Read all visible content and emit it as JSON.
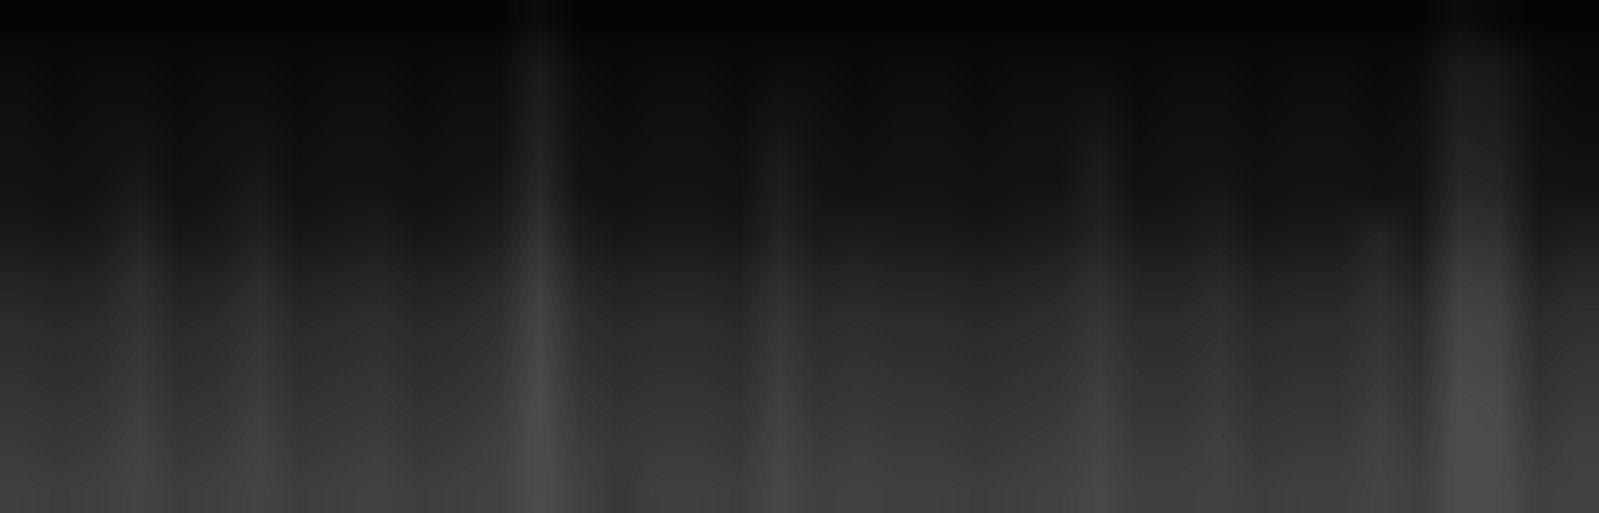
{
  "chart_data": {
    "type": "heatmap",
    "color": "gray",
    "tick_labels": false,
    "cell_range": [
      0,
      1
    ],
    "cells": [
      [
        0.02,
        0.02,
        0.02,
        0.02,
        0.02,
        0.02,
        0.02,
        0.02,
        0.02,
        0.02,
        0.02,
        0.02,
        0.02,
        0.05,
        0.02,
        0.02,
        0.02,
        0.02,
        0.02,
        0.02,
        0.02,
        0.02,
        0.02,
        0.02,
        0.02,
        0.02,
        0.02,
        0.02,
        0.02,
        0.02,
        0.02,
        0.02,
        0.02,
        0.02,
        0.02,
        0.02,
        0.05,
        0.03,
        0.02,
        0.02
      ],
      [
        0.05,
        0.04,
        0.05,
        0.05,
        0.04,
        0.05,
        0.05,
        0.04,
        0.05,
        0.05,
        0.04,
        0.05,
        0.05,
        0.1,
        0.05,
        0.04,
        0.05,
        0.05,
        0.04,
        0.05,
        0.05,
        0.04,
        0.05,
        0.05,
        0.04,
        0.05,
        0.05,
        0.05,
        0.04,
        0.05,
        0.05,
        0.04,
        0.05,
        0.05,
        0.04,
        0.05,
        0.1,
        0.09,
        0.05,
        0.04
      ],
      [
        0.06,
        0.05,
        0.06,
        0.06,
        0.05,
        0.06,
        0.06,
        0.05,
        0.06,
        0.06,
        0.05,
        0.06,
        0.06,
        0.12,
        0.06,
        0.05,
        0.06,
        0.06,
        0.05,
        0.07,
        0.06,
        0.05,
        0.06,
        0.06,
        0.05,
        0.06,
        0.06,
        0.07,
        0.05,
        0.06,
        0.06,
        0.05,
        0.06,
        0.06,
        0.05,
        0.06,
        0.12,
        0.11,
        0.06,
        0.05
      ],
      [
        0.07,
        0.06,
        0.07,
        0.08,
        0.06,
        0.07,
        0.08,
        0.06,
        0.07,
        0.07,
        0.06,
        0.07,
        0.07,
        0.14,
        0.07,
        0.06,
        0.07,
        0.07,
        0.06,
        0.1,
        0.07,
        0.06,
        0.07,
        0.07,
        0.06,
        0.07,
        0.07,
        0.1,
        0.06,
        0.07,
        0.07,
        0.06,
        0.07,
        0.07,
        0.06,
        0.07,
        0.14,
        0.13,
        0.07,
        0.06
      ],
      [
        0.08,
        0.07,
        0.08,
        0.1,
        0.07,
        0.08,
        0.1,
        0.07,
        0.08,
        0.08,
        0.07,
        0.08,
        0.09,
        0.16,
        0.08,
        0.07,
        0.08,
        0.08,
        0.07,
        0.12,
        0.08,
        0.07,
        0.08,
        0.08,
        0.07,
        0.08,
        0.08,
        0.12,
        0.07,
        0.08,
        0.09,
        0.07,
        0.08,
        0.08,
        0.07,
        0.08,
        0.16,
        0.15,
        0.08,
        0.08
      ],
      [
        0.1,
        0.09,
        0.1,
        0.14,
        0.09,
        0.1,
        0.13,
        0.09,
        0.1,
        0.11,
        0.09,
        0.1,
        0.12,
        0.2,
        0.11,
        0.09,
        0.1,
        0.1,
        0.09,
        0.14,
        0.1,
        0.11,
        0.1,
        0.1,
        0.09,
        0.1,
        0.11,
        0.14,
        0.1,
        0.1,
        0.12,
        0.09,
        0.1,
        0.1,
        0.14,
        0.1,
        0.2,
        0.19,
        0.1,
        0.12
      ],
      [
        0.14,
        0.13,
        0.14,
        0.18,
        0.13,
        0.14,
        0.17,
        0.13,
        0.14,
        0.15,
        0.13,
        0.14,
        0.16,
        0.24,
        0.15,
        0.13,
        0.14,
        0.14,
        0.13,
        0.18,
        0.14,
        0.15,
        0.14,
        0.14,
        0.13,
        0.14,
        0.15,
        0.18,
        0.14,
        0.14,
        0.16,
        0.13,
        0.14,
        0.14,
        0.17,
        0.14,
        0.24,
        0.23,
        0.14,
        0.16
      ],
      [
        0.17,
        0.16,
        0.17,
        0.2,
        0.16,
        0.17,
        0.2,
        0.16,
        0.17,
        0.18,
        0.16,
        0.17,
        0.19,
        0.27,
        0.18,
        0.16,
        0.17,
        0.17,
        0.16,
        0.21,
        0.17,
        0.18,
        0.17,
        0.17,
        0.16,
        0.17,
        0.18,
        0.21,
        0.17,
        0.17,
        0.19,
        0.16,
        0.17,
        0.17,
        0.2,
        0.17,
        0.27,
        0.26,
        0.17,
        0.19
      ],
      [
        0.19,
        0.18,
        0.19,
        0.22,
        0.18,
        0.19,
        0.22,
        0.18,
        0.19,
        0.2,
        0.18,
        0.19,
        0.21,
        0.28,
        0.2,
        0.18,
        0.19,
        0.19,
        0.18,
        0.23,
        0.19,
        0.2,
        0.19,
        0.19,
        0.18,
        0.19,
        0.2,
        0.23,
        0.19,
        0.19,
        0.21,
        0.18,
        0.19,
        0.19,
        0.22,
        0.19,
        0.28,
        0.27,
        0.19,
        0.21
      ],
      [
        0.21,
        0.2,
        0.21,
        0.24,
        0.2,
        0.21,
        0.24,
        0.2,
        0.21,
        0.22,
        0.2,
        0.21,
        0.23,
        0.3,
        0.22,
        0.2,
        0.21,
        0.21,
        0.2,
        0.25,
        0.21,
        0.22,
        0.21,
        0.21,
        0.2,
        0.21,
        0.22,
        0.25,
        0.21,
        0.21,
        0.23,
        0.2,
        0.21,
        0.21,
        0.24,
        0.21,
        0.3,
        0.29,
        0.21,
        0.23
      ],
      [
        0.23,
        0.22,
        0.23,
        0.26,
        0.22,
        0.23,
        0.26,
        0.22,
        0.23,
        0.24,
        0.22,
        0.23,
        0.25,
        0.3,
        0.24,
        0.22,
        0.23,
        0.23,
        0.22,
        0.27,
        0.23,
        0.24,
        0.23,
        0.23,
        0.22,
        0.23,
        0.24,
        0.27,
        0.23,
        0.23,
        0.25,
        0.22,
        0.23,
        0.23,
        0.26,
        0.23,
        0.3,
        0.3,
        0.23,
        0.25
      ],
      [
        0.25,
        0.24,
        0.25,
        0.27,
        0.24,
        0.25,
        0.27,
        0.24,
        0.25,
        0.26,
        0.24,
        0.25,
        0.26,
        0.3,
        0.26,
        0.22,
        0.25,
        0.25,
        0.24,
        0.28,
        0.25,
        0.26,
        0.25,
        0.25,
        0.24,
        0.25,
        0.26,
        0.28,
        0.25,
        0.25,
        0.26,
        0.24,
        0.25,
        0.25,
        0.27,
        0.25,
        0.3,
        0.3,
        0.25,
        0.26
      ]
    ]
  }
}
